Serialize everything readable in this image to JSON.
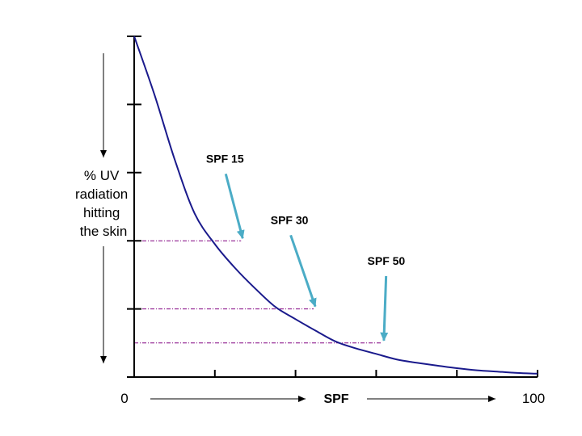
{
  "chart_data": {
    "type": "line",
    "title": "",
    "xlabel": "SPF",
    "ylabel": [
      "% UV",
      "radiation",
      "hitting",
      "the skin"
    ],
    "xlim": [
      0,
      100
    ],
    "x_tick_labels": [
      {
        "x": 0,
        "label": "0"
      },
      {
        "x": 100,
        "label": "100"
      }
    ],
    "x_ticks": [
      0,
      20,
      40,
      60,
      80,
      100
    ],
    "y_ticks": [
      0,
      1,
      2,
      3,
      4,
      5
    ],
    "ylim": [
      0,
      5
    ],
    "grid": false,
    "series": [
      {
        "color": "#1a1a8c",
        "x": [
          0,
          5,
          10,
          15,
          20,
          25,
          30,
          35,
          40,
          45,
          50,
          55,
          60,
          65,
          70,
          75,
          80,
          85,
          90,
          95,
          100
        ],
        "y": [
          5.0,
          4.15,
          3.2,
          2.4,
          1.95,
          1.6,
          1.3,
          1.03,
          0.85,
          0.68,
          0.52,
          0.42,
          0.34,
          0.26,
          0.21,
          0.17,
          0.13,
          0.1,
          0.08,
          0.06,
          0.05
        ]
      }
    ],
    "reference_lines": [
      {
        "x": 26.5,
        "y": 2.0
      },
      {
        "x": 44.5,
        "y": 1.0
      },
      {
        "x": 61.5,
        "y": 0.5
      }
    ],
    "annotations": [
      {
        "text": "SPF 15",
        "x": 26.5,
        "y": 2.0,
        "text_x": 22.5,
        "text_y": 3.1,
        "arrow_color": "#4bacc6"
      },
      {
        "text": "SPF 30",
        "x": 44.5,
        "y": 1.0,
        "text_x": 38.5,
        "text_y": 2.2,
        "arrow_color": "#4bacc6"
      },
      {
        "text": "SPF 50",
        "x": 61.5,
        "y": 0.5,
        "text_x": 62.5,
        "text_y": 1.6,
        "arrow_color": "#4bacc6"
      }
    ],
    "colors": {
      "axis": "#000000",
      "curve": "#1a1a8c",
      "reference": "#800080",
      "arrow": "#4bacc6"
    }
  }
}
